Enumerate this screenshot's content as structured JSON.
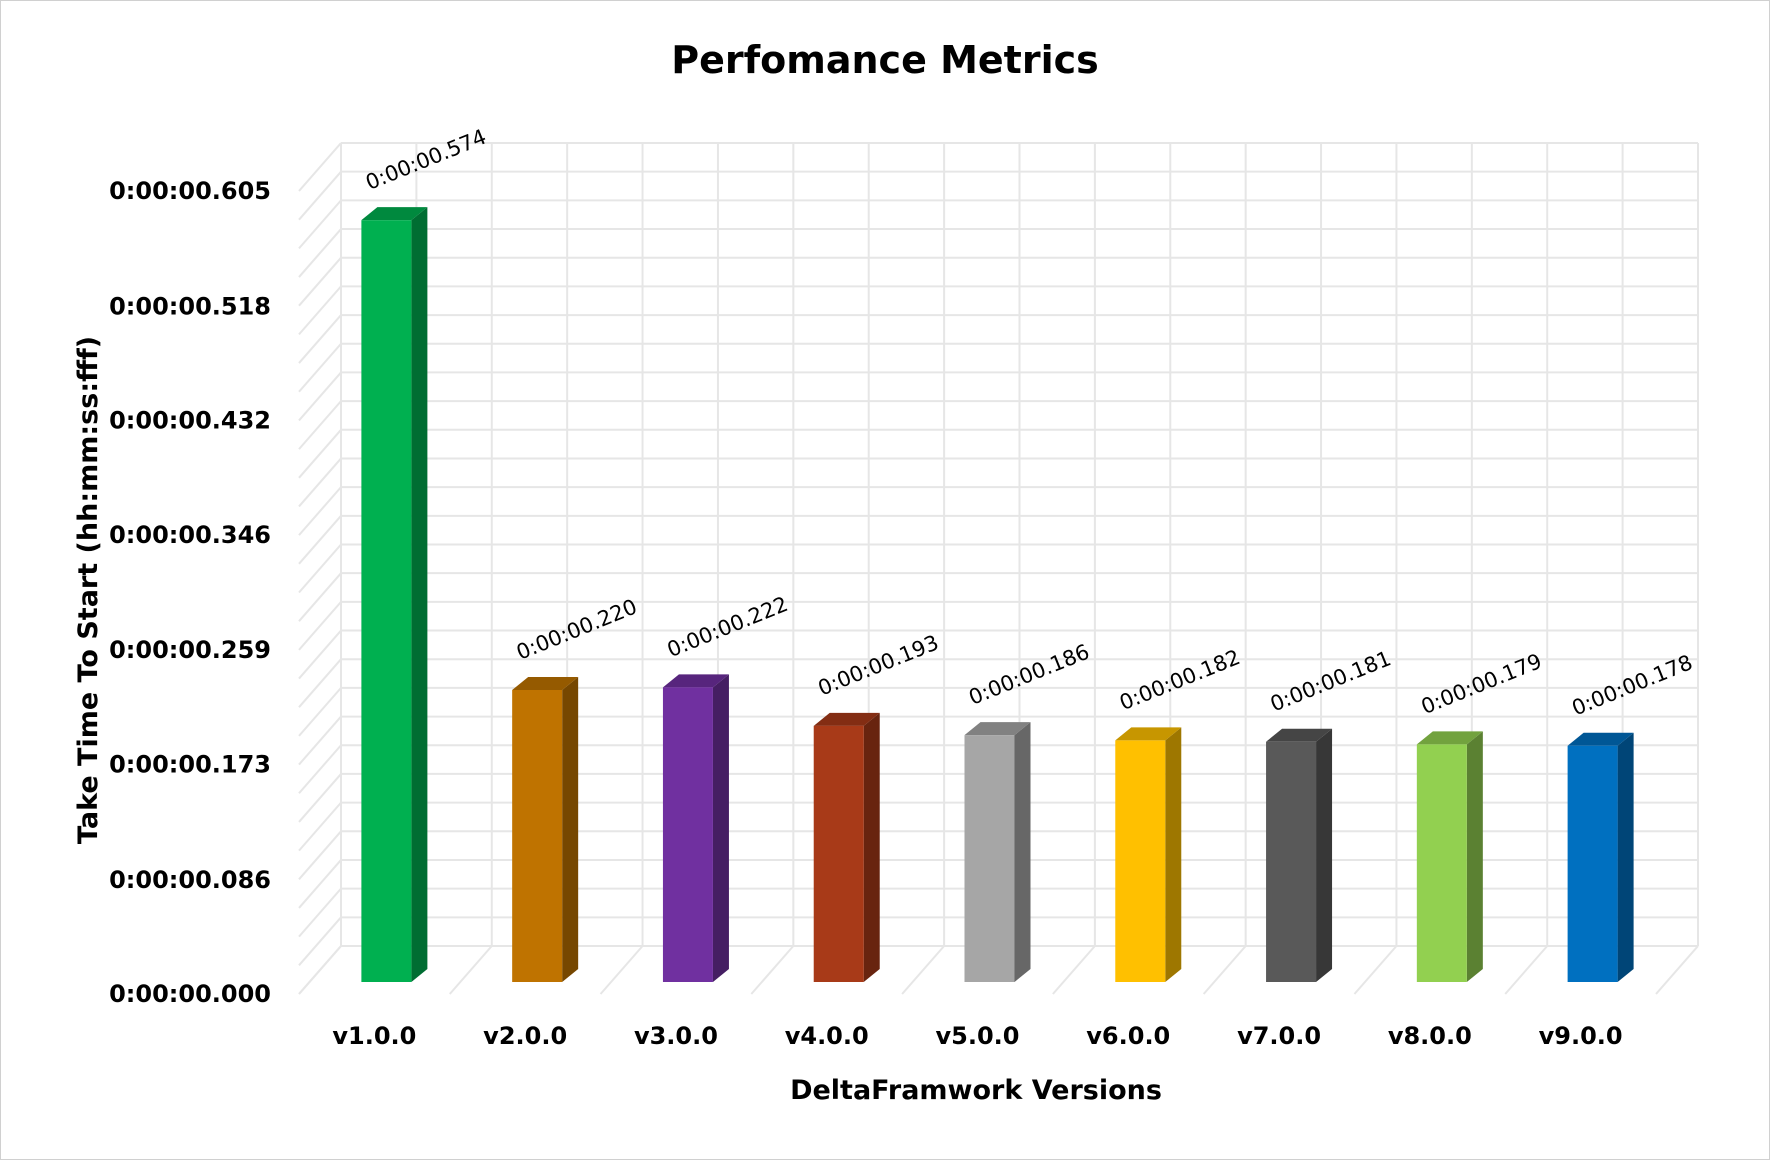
{
  "chart_data": {
    "type": "bar",
    "title": "Perfomance Metrics",
    "xlabel": "DeltaFramwork Versions",
    "ylabel": "Take Time To Start (hh:mm:ss:fff)",
    "categories": [
      "v1.0.0",
      "v2.0.0",
      "v3.0.0",
      "v4.0.0",
      "v5.0.0",
      "v6.0.0",
      "v7.0.0",
      "v8.0.0",
      "v9.0.0"
    ],
    "values": [
      0.574,
      0.22,
      0.222,
      0.193,
      0.186,
      0.182,
      0.181,
      0.179,
      0.178
    ],
    "value_labels": [
      "0:00:00.574",
      "0:00:00.220",
      "0:00:00.222",
      "0:00:00.193",
      "0:00:00.186",
      "0:00:00.182",
      "0:00:00.181",
      "0:00:00.179",
      "0:00:00.178"
    ],
    "ylim": [
      0,
      0.605
    ],
    "y_ticks": [
      0,
      0.086,
      0.173,
      0.259,
      0.346,
      0.432,
      0.518,
      0.605
    ],
    "y_tick_labels": [
      "0:00:00.000",
      "0:00:00.086",
      "0:00:00.173",
      "0:00:00.259",
      "0:00:00.346",
      "0:00:00.432",
      "0:00:00.518",
      "0:00:00.605"
    ],
    "grid": true,
    "style": "3d-column",
    "legend": "none",
    "colors": [
      "#00b050",
      "#bf7300",
      "#7030a0",
      "#a83a18",
      "#a6a6a6",
      "#ffc000",
      "#595959",
      "#92d050",
      "#0070c0"
    ]
  }
}
